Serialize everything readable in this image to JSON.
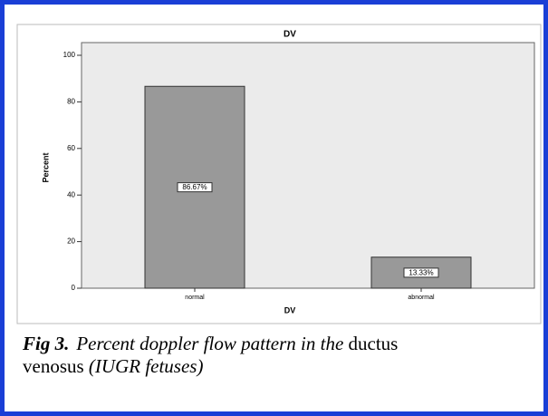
{
  "chart_data": {
    "type": "bar",
    "title": "DV",
    "x_label": "DV",
    "y_label": "Percent",
    "categories": [
      "normal",
      "abnormal"
    ],
    "values": [
      86.67,
      13.33
    ],
    "value_labels": [
      "86.67%",
      "13.33%"
    ],
    "color": "#999999",
    "ylim": [
      0,
      100
    ],
    "yticks": [
      0,
      20,
      40,
      60,
      80,
      100
    ]
  },
  "caption": {
    "label": "Fig 3.",
    "parts": [
      "Percent doppler flow pattern in the",
      "ductus",
      "venosus",
      "(IUGR fetuses)"
    ]
  }
}
